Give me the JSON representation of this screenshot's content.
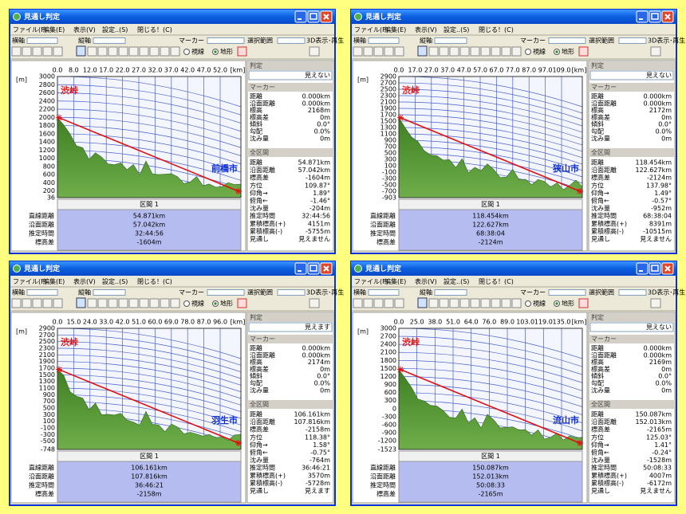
{
  "common": {
    "window_title": "見通し判定",
    "menu": [
      "ファイル(F)",
      "編集(E)",
      "表示(V)",
      "設定..(S)",
      "閉じる！(C)"
    ],
    "toolbar": {
      "h_axis": "横軸",
      "v_axis": "縦軸",
      "marker": "マーカー",
      "range": "選択範囲",
      "play": "3D表示･再生",
      "sight": "視線",
      "terrain": "地形"
    },
    "judgement_header": "判定",
    "marker_header": "マーカー",
    "total_header": "全区間",
    "marker_labels": [
      "距離",
      "沿面距離",
      "標高",
      "標高差",
      "傾斜",
      "勾配",
      "沈み量"
    ],
    "total_labels": [
      "距離",
      "沿面距離",
      "標高差",
      "方位",
      "仰角→",
      "俯角←",
      "沈み量",
      "推定時間",
      "累積標高(+)",
      "累積標高(-)",
      "見通し"
    ],
    "section_title": "区間 1",
    "section_labels": [
      "直線距離",
      "沿面距離",
      "推定時間",
      "標高差"
    ],
    "y_unit": "[m]",
    "x_unit": "[km]",
    "start_label": "渋峠"
  },
  "windows": [
    {
      "end_label": "前橋市",
      "x_ticks": [
        "0.0",
        "8.0",
        "12.0",
        "17.0",
        "22.0",
        "27.0",
        "32.0",
        "37.0",
        "42.0",
        "47.0",
        "52.0"
      ],
      "y_ticks": [
        3000,
        2800,
        2600,
        2400,
        2200,
        2000,
        1800,
        1600,
        1400,
        1200,
        1000,
        800,
        600,
        400,
        200,
        36
      ],
      "judgement": "見えない",
      "marker_values": [
        "0.000km",
        "0.000km",
        "2168m",
        "0m",
        "0.0°",
        "0.0%",
        "0m"
      ],
      "total_values": [
        "54.871km",
        "57.042km",
        "-1604m",
        "109.87°",
        "1.89°",
        "-1.46°",
        "-204m",
        "32:44:56",
        "4151m",
        "-5755m",
        "見えません"
      ],
      "section_values": [
        "54.871km",
        "57.042km",
        "32:44:56",
        "-1604m"
      ]
    },
    {
      "end_label": "狭山市",
      "x_ticks": [
        "0.0",
        "17.0",
        "27.0",
        "37.0",
        "47.0",
        "57.0",
        "67.0",
        "77.0",
        "87.0",
        "97.0",
        "109.0"
      ],
      "y_ticks": [
        2900,
        2700,
        2500,
        2300,
        2100,
        1900,
        1700,
        1500,
        1300,
        1100,
        900,
        700,
        500,
        300,
        100,
        -100,
        -300,
        -500,
        -700,
        -903
      ],
      "judgement": "見えない",
      "marker_values": [
        "0.000km",
        "0.000km",
        "2172m",
        "0m",
        "0.0°",
        "0.0%",
        "0m"
      ],
      "total_values": [
        "118.454km",
        "122.627km",
        "-2124m",
        "137.98°",
        "1.49°",
        "-0.57°",
        "-952m",
        "68:38:04",
        "8391m",
        "-10515m",
        "見えません"
      ],
      "section_values": [
        "118.454km",
        "122.627km",
        "68:38:04",
        "-2124m"
      ]
    },
    {
      "end_label": "羽生市",
      "x_ticks": [
        "0.0",
        "15.0",
        "24.0",
        "33.0",
        "42.0",
        "51.0",
        "60.0",
        "69.0",
        "78.0",
        "87.0",
        "96.0"
      ],
      "y_ticks": [
        2900,
        2700,
        2500,
        2300,
        2100,
        1900,
        1700,
        1500,
        1300,
        1100,
        900,
        700,
        500,
        300,
        100,
        -100,
        -300,
        -500,
        -748
      ],
      "judgement": "見えます",
      "marker_values": [
        "0.000km",
        "0.000km",
        "2174m",
        "0m",
        "0.0°",
        "0.0%",
        "0m"
      ],
      "total_values": [
        "106.161km",
        "107.816km",
        "-2158m",
        "118.38°",
        "1.58°",
        "-0.75°",
        "-764m",
        "36:46:21",
        "3570m",
        "-5728m",
        "見えます"
      ],
      "section_values": [
        "106.161km",
        "107.816km",
        "36:46:21",
        "-2158m"
      ]
    },
    {
      "end_label": "流山市",
      "x_ticks": [
        "0.0",
        "25.0",
        "38.0",
        "51.0",
        "64.0",
        "76.0",
        "89.0",
        "103.0",
        "119.0",
        "135.0"
      ],
      "y_ticks": [
        3000,
        2700,
        2400,
        2100,
        1800,
        1500,
        1200,
        900,
        600,
        300,
        0,
        -300,
        -600,
        -900,
        -1200,
        -1523
      ],
      "judgement": "見えない",
      "marker_values": [
        "0.000km",
        "0.000km",
        "2169m",
        "0m",
        "0.0°",
        "0.0%",
        "0m"
      ],
      "total_values": [
        "150.087km",
        "152.013km",
        "-2165m",
        "125.03°",
        "1.41°",
        "-0.24°",
        "-1528m",
        "50:08:33",
        "4007m",
        "-6172m",
        "見えません"
      ],
      "section_values": [
        "150.087km",
        "152.013km",
        "50:08:33",
        "-2165m"
      ]
    }
  ]
}
